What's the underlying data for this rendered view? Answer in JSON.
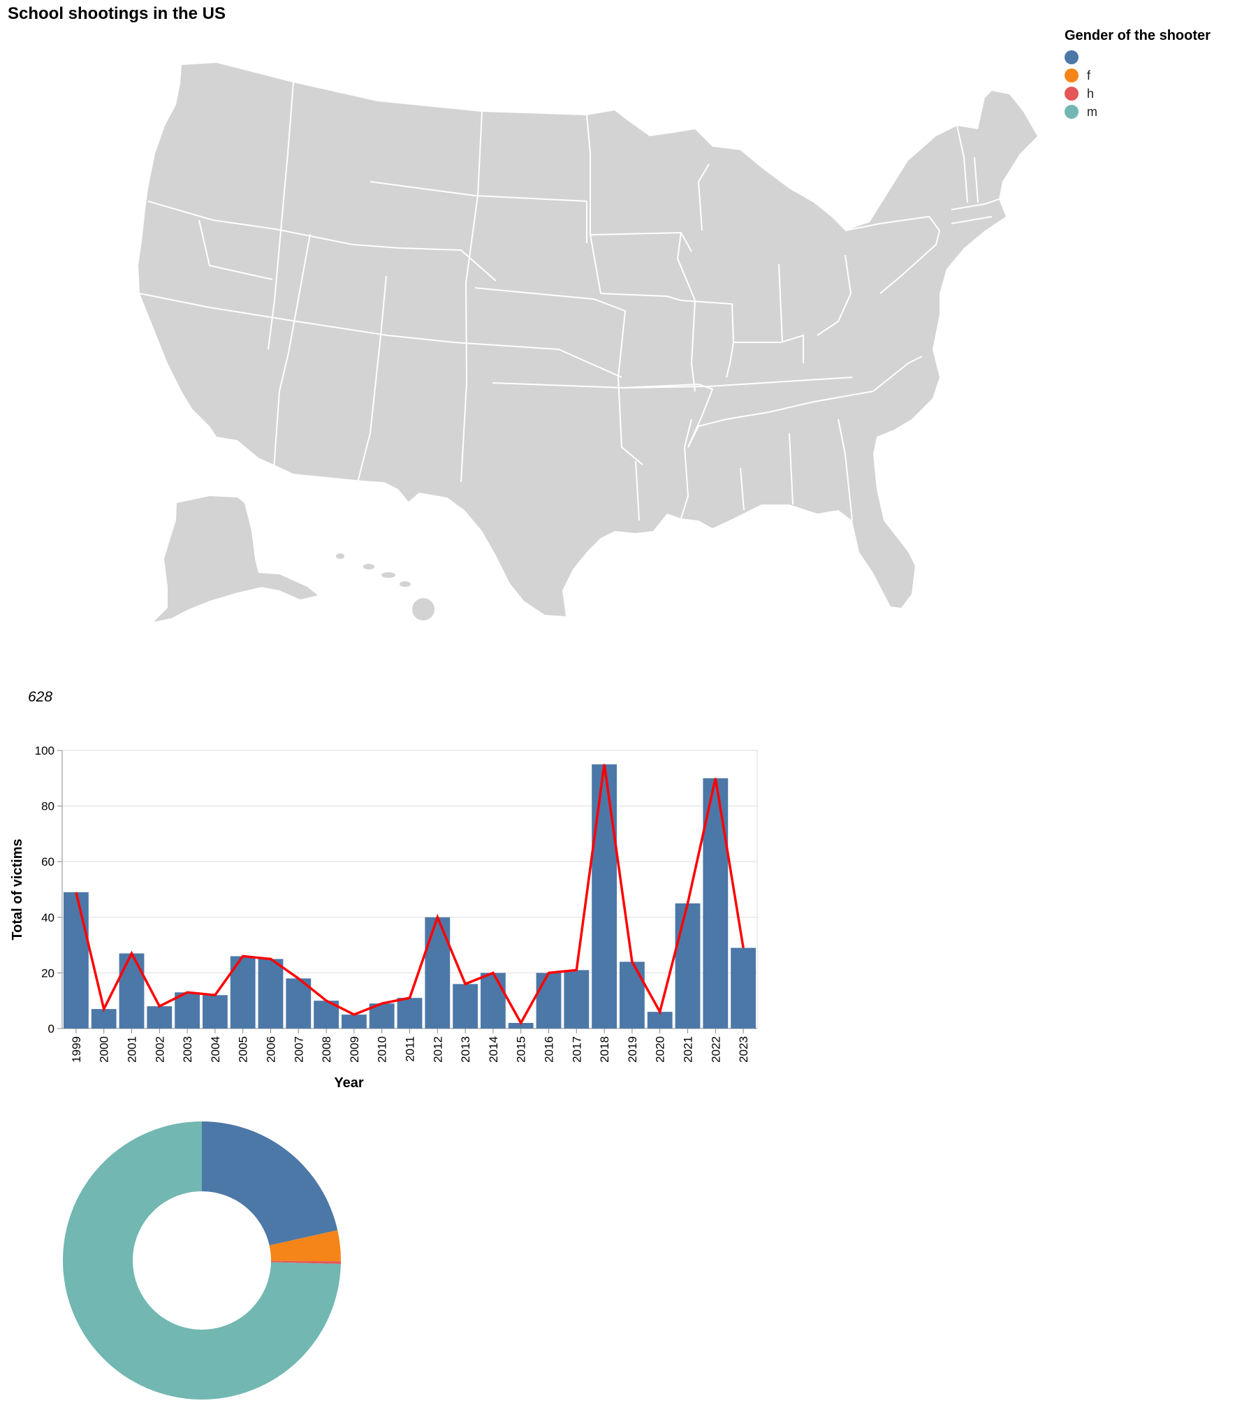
{
  "title": "School shootings in the US",
  "map": {
    "land_color": "#d3d3d3",
    "border_color": "#ffffff"
  },
  "legend": {
    "title": "Gender of the shooter",
    "items": [
      {
        "label": "",
        "color": "#4c78a8"
      },
      {
        "label": "f",
        "color": "#f58518"
      },
      {
        "label": "h",
        "color": "#e45756"
      },
      {
        "label": "m",
        "color": "#72b7b2"
      }
    ]
  },
  "total_victims": "628",
  "chart_data": [
    {
      "type": "bar",
      "title": "",
      "xlabel": "Year",
      "ylabel": "Total of victims",
      "ylim": [
        0,
        100
      ],
      "yticks": [
        0,
        20,
        40,
        60,
        80,
        100
      ],
      "grid": true,
      "bar_color": "#4c78a8",
      "line_color": "#ff0000",
      "categories": [
        "1999",
        "2000",
        "2001",
        "2002",
        "2003",
        "2004",
        "2005",
        "2006",
        "2007",
        "2008",
        "2009",
        "2010",
        "2011",
        "2012",
        "2013",
        "2014",
        "2015",
        "2016",
        "2017",
        "2018",
        "2019",
        "2020",
        "2021",
        "2022",
        "2023"
      ],
      "values": [
        49,
        7,
        27,
        8,
        13,
        12,
        26,
        25,
        18,
        10,
        5,
        9,
        11,
        40,
        16,
        20,
        2,
        20,
        21,
        95,
        24,
        6,
        45,
        90,
        29
      ]
    },
    {
      "type": "pie",
      "variant": "donut",
      "categories": [
        "",
        "f",
        "h",
        "m"
      ],
      "values": [
        21.5,
        3.6,
        0.3,
        74.6
      ],
      "colors": [
        "#4c78a8",
        "#f58518",
        "#e45756",
        "#72b7b2"
      ]
    }
  ]
}
